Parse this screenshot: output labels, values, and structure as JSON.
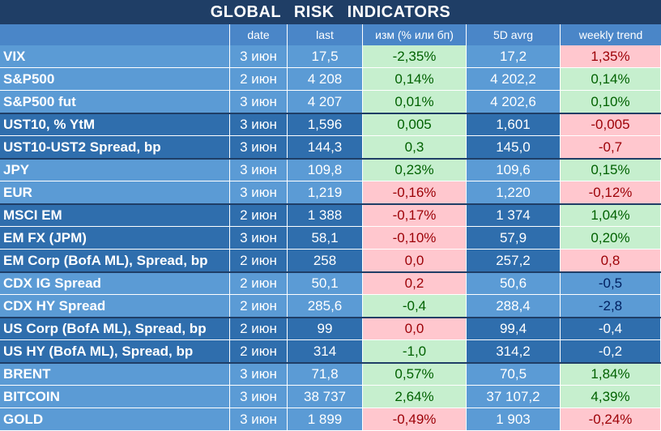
{
  "title": "GLOBAL   RISK   INDICATORS",
  "headers": {
    "name": "",
    "date": "date",
    "last": "last",
    "change": "изм (% или бп)",
    "avg": "5D avrg",
    "weekly": "weekly trend"
  },
  "rows": [
    {
      "name": "VIX",
      "date": "3 июн",
      "last": "17,5",
      "change": "-2,35%",
      "change_sign": "pos",
      "avg": "17,2",
      "weekly": "1,35%",
      "weekly_sign": "neg",
      "group": "light"
    },
    {
      "name": "S&P500",
      "date": "2 июн",
      "last": "4 208",
      "change": "0,14%",
      "change_sign": "pos",
      "avg": "4 202,2",
      "weekly": "0,14%",
      "weekly_sign": "pos",
      "group": "light"
    },
    {
      "name": "S&P500 fut",
      "date": "3 июн",
      "last": "4 207",
      "change": "0,01%",
      "change_sign": "pos",
      "avg": "4 202,6",
      "weekly": "0,10%",
      "weekly_sign": "pos",
      "group": "light"
    },
    {
      "name": "UST10, % YtM",
      "date": "3 июн",
      "last": "1,596",
      "change": "0,005",
      "change_sign": "pos",
      "avg": "1,601",
      "weekly": "-0,005",
      "weekly_sign": "neg",
      "group": "dark"
    },
    {
      "name": "UST10-UST2 Spread, bp",
      "date": "3 июн",
      "last": "144,3",
      "change": "0,3",
      "change_sign": "pos",
      "avg": "145,0",
      "weekly": "-0,7",
      "weekly_sign": "neg",
      "group": "dark"
    },
    {
      "name": "JPY",
      "date": "3 июн",
      "last": "109,8",
      "change": "0,23%",
      "change_sign": "pos",
      "avg": "109,6",
      "weekly": "0,15%",
      "weekly_sign": "pos",
      "group": "light"
    },
    {
      "name": "EUR",
      "date": "3 июн",
      "last": "1,219",
      "change": "-0,16%",
      "change_sign": "neg",
      "avg": "1,220",
      "weekly": "-0,12%",
      "weekly_sign": "neg",
      "group": "light"
    },
    {
      "name": "MSCI EM",
      "date": "2 июн",
      "last": "1 388",
      "change": "-0,17%",
      "change_sign": "neg",
      "avg": "1 374",
      "weekly": "1,04%",
      "weekly_sign": "pos",
      "group": "dark"
    },
    {
      "name": "EM FX (JPM)",
      "date": "3 июн",
      "last": "58,1",
      "change": "-0,10%",
      "change_sign": "neg",
      "avg": "57,9",
      "weekly": "0,20%",
      "weekly_sign": "pos",
      "group": "dark"
    },
    {
      "name": "EM Corp (BofA ML), Spread, bp",
      "date": "2 июн",
      "last": "258",
      "change": "0,0",
      "change_sign": "neg",
      "avg": "257,2",
      "weekly": "0,8",
      "weekly_sign": "neg",
      "group": "dark"
    },
    {
      "name": "CDX IG Spread",
      "date": "2 июн",
      "last": "50,1",
      "change": "0,2",
      "change_sign": "neg",
      "avg": "50,6",
      "weekly": "-0,5",
      "weekly_sign": "neutral",
      "group": "light"
    },
    {
      "name": "CDX HY Spread",
      "date": "2 июн",
      "last": "285,6",
      "change": "-0,4",
      "change_sign": "pos",
      "avg": "288,4",
      "weekly": "-2,8",
      "weekly_sign": "neutral",
      "group": "light"
    },
    {
      "name": "US Corp (BofA ML), Spread, bp",
      "date": "2 июн",
      "last": "99",
      "change": "0,0",
      "change_sign": "neg",
      "avg": "99,4",
      "weekly": "-0,4",
      "weekly_sign": "neutral",
      "group": "dark"
    },
    {
      "name": "US HY (BofA ML), Spread, bp",
      "date": "2 июн",
      "last": "314",
      "change": "-1,0",
      "change_sign": "pos",
      "avg": "314,2",
      "weekly": "-0,2",
      "weekly_sign": "neutral",
      "group": "dark"
    },
    {
      "name": "BRENT",
      "date": "3 июн",
      "last": "71,8",
      "change": "0,57%",
      "change_sign": "pos",
      "avg": "70,5",
      "weekly": "1,84%",
      "weekly_sign": "pos",
      "group": "light"
    },
    {
      "name": "BITCOIN",
      "date": "3 июн",
      "last": "38 737",
      "change": "2,64%",
      "change_sign": "pos",
      "avg": "37 107,2",
      "weekly": "4,39%",
      "weekly_sign": "pos",
      "group": "light"
    },
    {
      "name": "GOLD",
      "date": "3 июн",
      "last": "1 899",
      "change": "-0,49%",
      "change_sign": "neg",
      "avg": "1 903",
      "weekly": "-0,24%",
      "weekly_sign": "neg",
      "group": "light"
    }
  ],
  "colors": {
    "title_bg": "#1f3e66",
    "group_light": "#5b9bd5",
    "group_dark": "#2f6ead",
    "positive_bg": "#c6efce",
    "negative_bg": "#ffc7ce"
  }
}
